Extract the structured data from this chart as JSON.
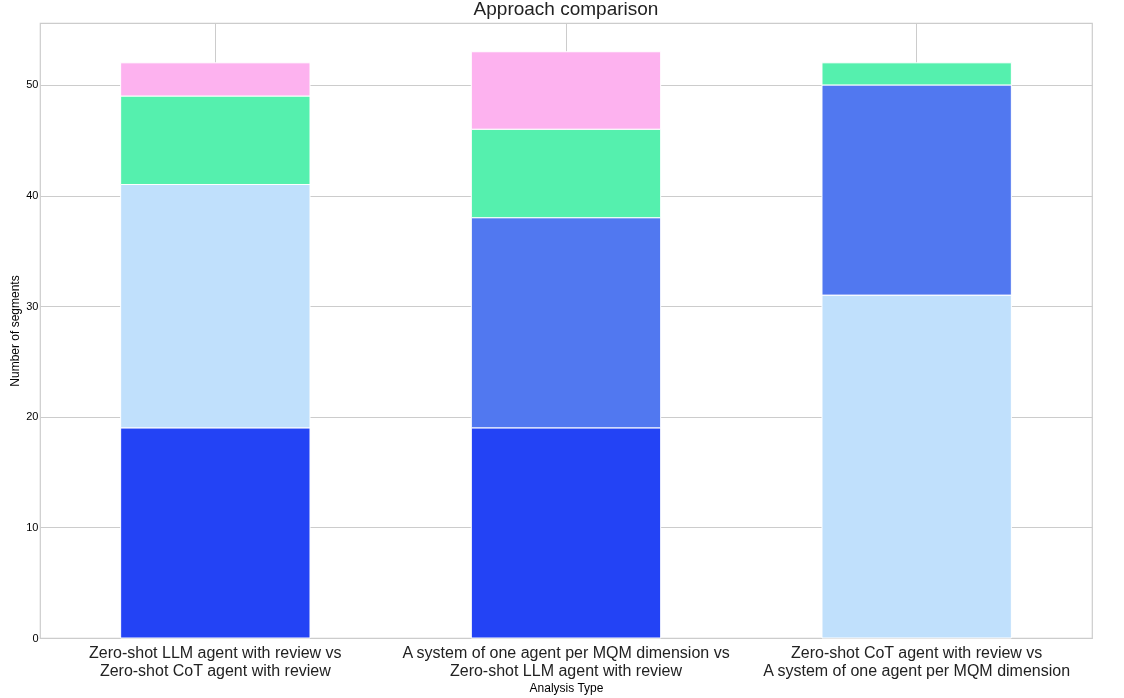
{
  "chart_data": {
    "type": "bar",
    "title": "Approach comparison",
    "xlabel": "Analysis Type",
    "ylabel": "Number of segments",
    "categories": [
      "Zero-shot LLM agent with review vs\nZero-shot CoT agent with review",
      "A system of one agent per MQM dimension vs\nZero-shot LLM agent with review",
      "Zero-shot CoT agent with review vs\nA system of one agent per MQM dimension"
    ],
    "stacked": true,
    "series": [
      {
        "color": "#2343f5",
        "values": [
          19,
          19,
          null
        ]
      },
      {
        "color": "#c0e0fc",
        "values": [
          22,
          null,
          31
        ]
      },
      {
        "color": "#5178f0",
        "values": [
          null,
          19,
          19
        ]
      },
      {
        "color": "#55f0ae",
        "values": [
          8,
          8,
          2
        ]
      },
      {
        "color": "#fdb2ef",
        "values": [
          3,
          7,
          null
        ]
      }
    ],
    "ylim": [
      0,
      55.6
    ],
    "yticks": [
      0,
      10,
      20,
      30,
      40,
      50
    ],
    "grid": true
  }
}
